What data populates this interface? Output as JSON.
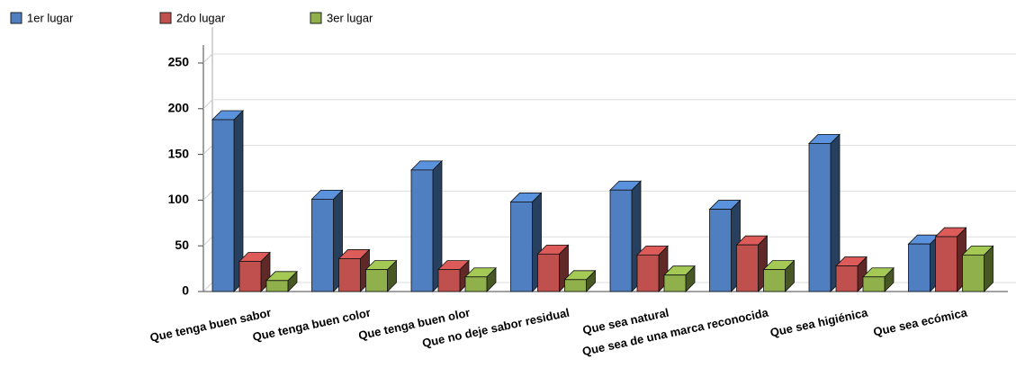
{
  "chart_data": {
    "type": "bar",
    "categories": [
      "Que tenga buen sabor",
      "Que tenga buen color",
      "Que tenga buen olor",
      "Que no deje sabor residual",
      "Que sea natural",
      "Que sea de una marca reconocida",
      "Que sea higiénica",
      "Que sea ecómica"
    ],
    "series": [
      {
        "name": "1er lugar",
        "color": "#4f7fc0",
        "values": [
          188,
          101,
          133,
          98,
          111,
          90,
          162,
          52
        ]
      },
      {
        "name": "2do lugar",
        "color": "#c0504d",
        "values": [
          33,
          36,
          24,
          41,
          40,
          51,
          28,
          60
        ]
      },
      {
        "name": "3er lugar",
        "color": "#8fb04a",
        "values": [
          12,
          24,
          16,
          13,
          18,
          24,
          16,
          40
        ]
      }
    ],
    "ylim": [
      0,
      250
    ],
    "yticks": [
      0,
      50,
      100,
      150,
      200,
      250
    ],
    "grid": true,
    "legend": "top"
  }
}
